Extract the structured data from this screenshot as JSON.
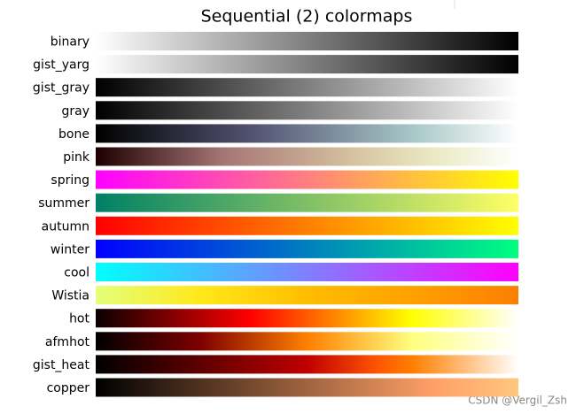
{
  "chart_data": {
    "type": "colormap",
    "title": "Sequential (2) colormaps",
    "watermark": "CSDN @Vergil_Zsh",
    "colormaps": [
      {
        "name": "binary",
        "stops": [
          [
            0,
            "#ffffff"
          ],
          [
            1,
            "#000000"
          ]
        ]
      },
      {
        "name": "gist_yarg",
        "stops": [
          [
            0,
            "#ffffff"
          ],
          [
            1,
            "#000000"
          ]
        ]
      },
      {
        "name": "gist_gray",
        "stops": [
          [
            0,
            "#000000"
          ],
          [
            1,
            "#ffffff"
          ]
        ]
      },
      {
        "name": "gray",
        "stops": [
          [
            0,
            "#000000"
          ],
          [
            1,
            "#ffffff"
          ]
        ]
      },
      {
        "name": "bone",
        "stops": [
          [
            0,
            "#000000"
          ],
          [
            0.375,
            "#545474"
          ],
          [
            0.75,
            "#a7c7c7"
          ],
          [
            1,
            "#ffffff"
          ]
        ]
      },
      {
        "name": "pink",
        "stops": [
          [
            0,
            "#1e0000"
          ],
          [
            0.3,
            "#a57575"
          ],
          [
            0.6,
            "#d5c09f"
          ],
          [
            0.8,
            "#eaeac4"
          ],
          [
            1,
            "#ffffff"
          ]
        ]
      },
      {
        "name": "spring",
        "stops": [
          [
            0,
            "#ff00ff"
          ],
          [
            1,
            "#ffff00"
          ]
        ]
      },
      {
        "name": "summer",
        "stops": [
          [
            0,
            "#008066"
          ],
          [
            1,
            "#ffff66"
          ]
        ]
      },
      {
        "name": "autumn",
        "stops": [
          [
            0,
            "#ff0000"
          ],
          [
            1,
            "#ffff00"
          ]
        ]
      },
      {
        "name": "winter",
        "stops": [
          [
            0,
            "#0000ff"
          ],
          [
            1,
            "#00ff80"
          ]
        ]
      },
      {
        "name": "cool",
        "stops": [
          [
            0,
            "#00ffff"
          ],
          [
            1,
            "#ff00ff"
          ]
        ]
      },
      {
        "name": "Wistia",
        "stops": [
          [
            0,
            "#e4ff7a"
          ],
          [
            0.25,
            "#ffe81a"
          ],
          [
            0.5,
            "#ffbd00"
          ],
          [
            0.75,
            "#ffa000"
          ],
          [
            1,
            "#fc7f00"
          ]
        ]
      },
      {
        "name": "hot",
        "stops": [
          [
            0,
            "#0b0000"
          ],
          [
            0.365,
            "#ff0000"
          ],
          [
            0.746,
            "#ffff00"
          ],
          [
            1,
            "#ffffff"
          ]
        ]
      },
      {
        "name": "afmhot",
        "stops": [
          [
            0,
            "#000000"
          ],
          [
            0.25,
            "#800000"
          ],
          [
            0.5,
            "#ff8000"
          ],
          [
            0.75,
            "#ffff80"
          ],
          [
            1,
            "#ffffff"
          ]
        ]
      },
      {
        "name": "gist_heat",
        "stops": [
          [
            0,
            "#000000"
          ],
          [
            0.5,
            "#bf0000"
          ],
          [
            0.667,
            "#ff5500"
          ],
          [
            0.75,
            "#ff8000"
          ],
          [
            1,
            "#ffffff"
          ]
        ]
      },
      {
        "name": "copper",
        "stops": [
          [
            0,
            "#000000"
          ],
          [
            0.8,
            "#ffa066"
          ],
          [
            1,
            "#ffc77f"
          ]
        ]
      }
    ]
  }
}
